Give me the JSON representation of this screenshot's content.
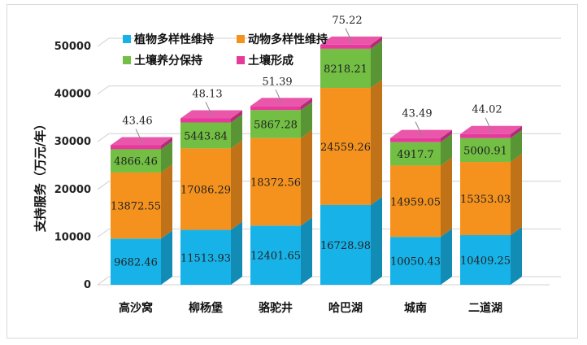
{
  "chart_data": {
    "type": "bar",
    "stacked": true,
    "categories": [
      "高沙窝",
      "柳杨堡",
      "骆驼井",
      "哈巴湖",
      "城南",
      "二道湖"
    ],
    "series": [
      {
        "name": "植物多样性维持",
        "color": "#17b3e8",
        "values": [
          9682.46,
          11513.93,
          12401.65,
          16728.98,
          10050.43,
          10409.25
        ]
      },
      {
        "name": "动物多样性维持",
        "color": "#f5921e",
        "values": [
          13872.55,
          17086.29,
          18372.56,
          24559.26,
          14959.05,
          15353.03
        ]
      },
      {
        "name": "土壤养分保持",
        "color": "#72bf44",
        "values": [
          4866.46,
          5443.84,
          5867.28,
          8218.21,
          4917.7,
          5000.91
        ]
      },
      {
        "name": "土壤形成",
        "color": "#e6399b",
        "values": [
          43.46,
          48.13,
          51.39,
          75.22,
          43.49,
          44.02
        ]
      }
    ],
    "labels": [
      [
        "9682.46",
        "11513.93",
        "12401.65",
        "16728.98",
        "10050.43",
        "10409.25"
      ],
      [
        "13872.55",
        "17086.29",
        "18372.56",
        "24559.26",
        "14959.05",
        "15353.03"
      ],
      [
        "4866.46",
        "5443.84",
        "5867.28",
        "8218.21",
        "4917.7",
        "5000.91"
      ],
      [
        "43.46",
        "48.13",
        "51.39",
        "75.22",
        "43.49",
        "44.02"
      ]
    ],
    "ylabel": "支持服务（万元/年）",
    "yticks": [
      "0",
      "10000",
      "20000",
      "30000",
      "40000",
      "50000"
    ],
    "ylim": [
      0,
      50000
    ],
    "grid": true,
    "legend": "top-left"
  }
}
